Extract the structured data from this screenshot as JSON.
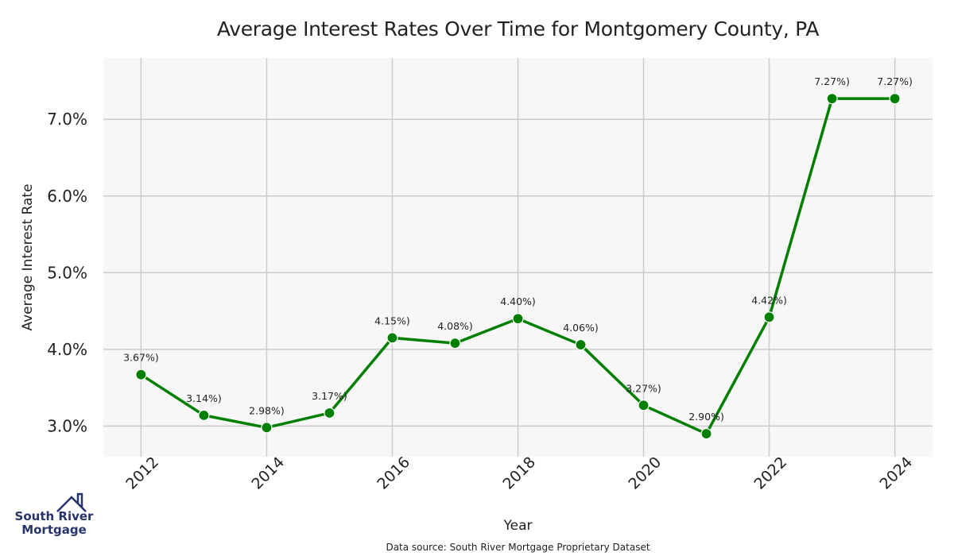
{
  "title": "Average Interest Rates Over Time for Montgomery County, PA",
  "xlabel": "Year",
  "ylabel": "Average Interest Rate",
  "source": "Data source: South River Mortgage Proprietary Dataset",
  "logo": {
    "line1": "South River",
    "line2": "Mortgage",
    "icon": "house-outline-icon"
  },
  "colors": {
    "line": "#007f00",
    "plot_bg": "#f7f7f7",
    "grid": "#cccccc",
    "text": "#222222",
    "logo": "#27336b"
  },
  "chart_data": {
    "type": "line",
    "x": [
      2012,
      2013,
      2014,
      2015,
      2016,
      2017,
      2018,
      2019,
      2020,
      2021,
      2022,
      2023,
      2024
    ],
    "series": [
      {
        "values": [
          3.67,
          3.14,
          2.98,
          3.17,
          4.15,
          4.08,
          4.4,
          4.06,
          3.27,
          2.9,
          4.42,
          7.27,
          7.27
        ]
      }
    ],
    "data_labels": [
      "3.67%)",
      "3.14%)",
      "2.98%)",
      "3.17%)",
      "4.15%)",
      "4.08%)",
      "4.40%)",
      "4.06%)",
      "3.27%)",
      "2.90%)",
      "4.42%)",
      "7.27%)",
      "7.27%)"
    ],
    "x_ticks": [
      "2012",
      "2014",
      "2016",
      "2018",
      "2020",
      "2022",
      "2024"
    ],
    "y_ticks": [
      "3.0%",
      "4.0%",
      "5.0%",
      "6.0%",
      "7.0%"
    ],
    "xlim": [
      2011.4,
      2024.6
    ],
    "ylim": [
      2.6,
      7.8
    ],
    "grid": true,
    "markers": true
  }
}
